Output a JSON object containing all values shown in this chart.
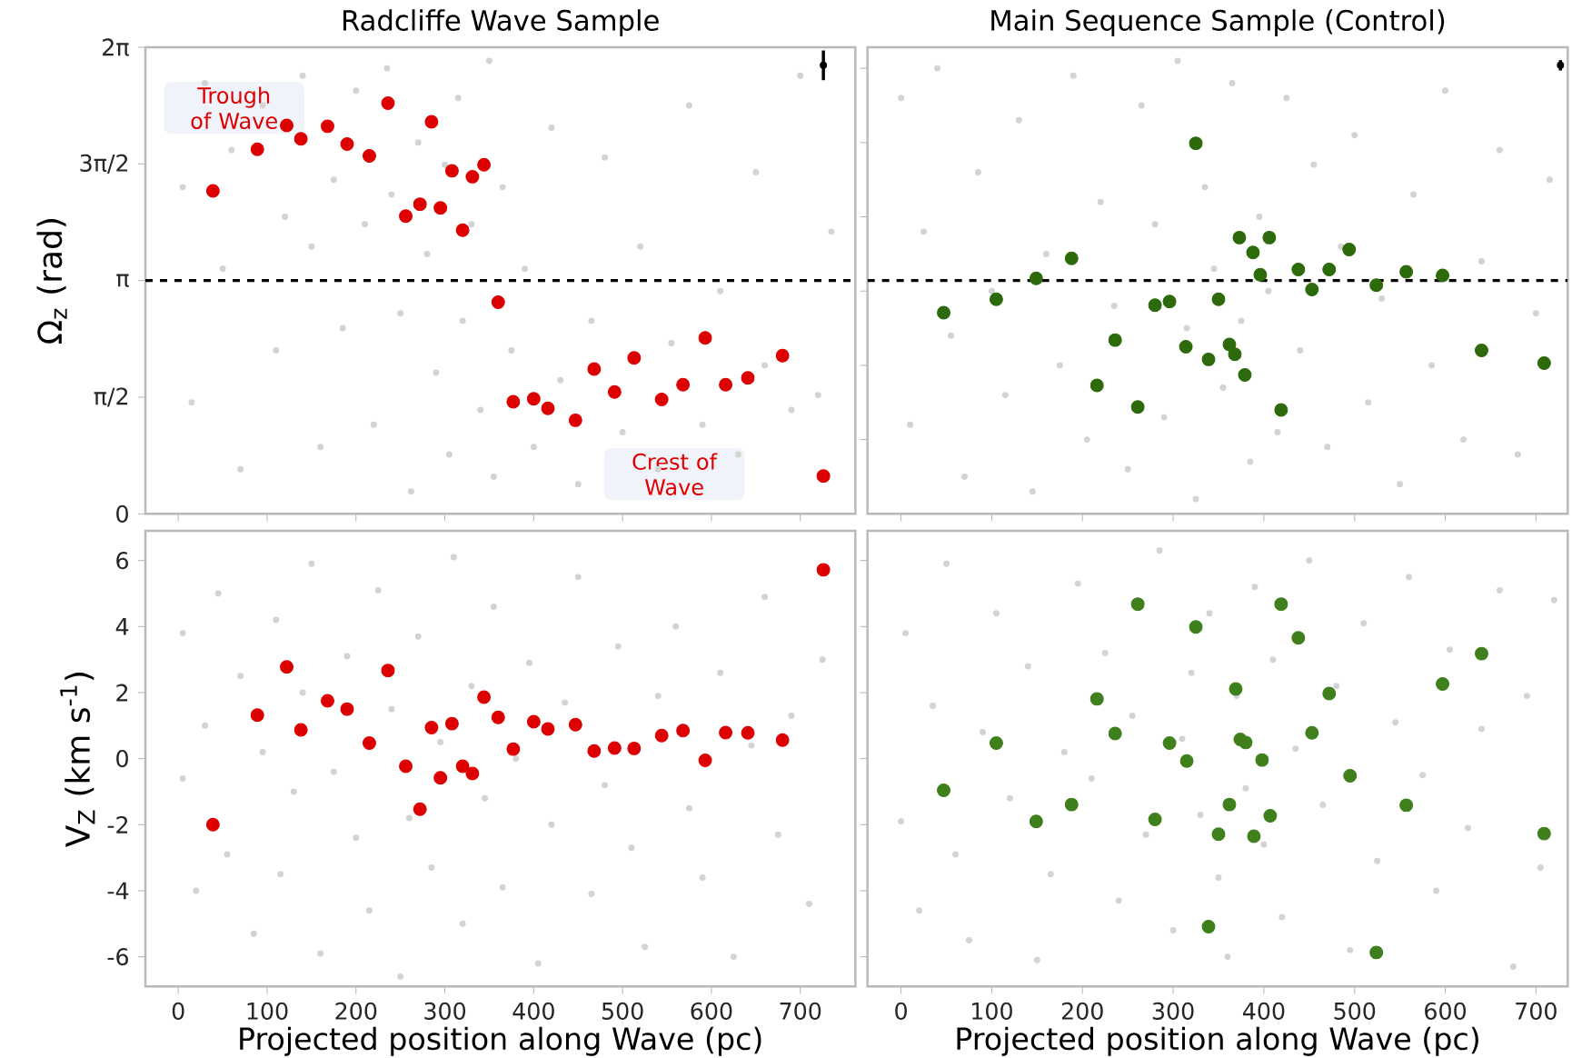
{
  "chart_data": [
    {
      "type": "scatter",
      "title": "Radcliffe Wave Sample",
      "ylabel": "Ω$_{z}$ (rad)",
      "marker": "circle",
      "tick_labels": "y",
      "xlim": [
        -37,
        762
      ],
      "ylim": [
        0,
        6.2832
      ],
      "xticks": [
        0,
        100,
        200,
        300,
        400,
        500,
        600,
        700
      ],
      "yticks": [
        0,
        {
          "value": 1.5708,
          "label": "π/2"
        },
        {
          "value": 3.1416,
          "label": "π"
        },
        {
          "value": 4.7124,
          "label": "3π/2"
        },
        {
          "value": 6.2832,
          "label": "2π"
        }
      ],
      "ref_lines": [
        {
          "axis": "y",
          "value": 3.1416,
          "color": "#000000",
          "line_style": "dashed"
        }
      ],
      "annotations": [
        "Trough of Wave",
        "Crest of Wave"
      ],
      "series": [
        {
          "color": "#d3d3d3",
          "x": [
            5,
            15,
            30,
            50,
            60,
            70,
            95,
            110,
            120,
            140,
            150,
            160,
            175,
            185,
            200,
            210,
            220,
            235,
            240,
            250,
            262,
            270,
            280,
            290,
            300,
            305,
            315,
            320,
            330,
            340,
            350,
            355,
            365,
            375,
            390,
            400,
            420,
            430,
            450,
            465,
            480,
            500,
            520,
            540,
            555,
            575,
            590,
            610,
            630,
            650,
            660,
            690,
            700,
            720,
            735
          ],
          "values": [
            4.4,
            1.5,
            5.8,
            3.3,
            4.9,
            0.6,
            5.5,
            2.2,
            4.0,
            5.9,
            3.6,
            0.9,
            4.5,
            2.5,
            5.7,
            3.9,
            1.2,
            6.0,
            4.3,
            2.7,
            0.3,
            5.0,
            3.5,
            1.9,
            4.7,
            0.8,
            5.6,
            2.6,
            3.9,
            1.4,
            6.1,
            0.5,
            4.4,
            2.2,
            3.3,
            0.9,
            5.2,
            1.8,
            0.4,
            2.6,
            4.8,
            1.1,
            3.6,
            0.6,
            2.3,
            5.5,
            1.2,
            3.0,
            0.8,
            4.6,
            2.0,
            1.4,
            5.9,
            1.6,
            3.8
          ]
        },
        {
          "color": "#dd0000",
          "x": [
            39,
            89,
            122,
            138,
            168,
            190,
            215,
            236,
            256,
            272,
            285,
            295,
            308,
            320,
            331,
            344,
            360,
            377,
            400,
            416,
            447,
            468,
            491,
            513,
            544,
            568,
            593,
            616,
            641,
            680,
            726
          ],
          "values": [
            4.35,
            4.91,
            5.23,
            5.05,
            5.22,
            4.98,
            4.82,
            5.53,
            4.01,
            4.17,
            5.28,
            4.12,
            4.62,
            3.82,
            4.54,
            4.7,
            2.85,
            1.51,
            1.55,
            1.42,
            1.26,
            1.95,
            1.64,
            2.1,
            1.54,
            1.74,
            2.37,
            1.74,
            1.83,
            2.13,
            0.51
          ]
        },
        {
          "color": "#000000",
          "x": [
            726
          ],
          "values": [
            6.04
          ],
          "errors": [
            0.2
          ]
        }
      ]
    },
    {
      "type": "scatter",
      "title": "Main Sequence Sample (Control)",
      "marker": "circle",
      "tick_labels": false,
      "xlim": [
        -37,
        735
      ],
      "ylim": [
        0,
        6.2832
      ],
      "xticks": [
        0,
        100,
        200,
        300,
        400,
        500,
        600,
        700
      ],
      "yticks": [
        {
          "value": 1,
          "label": null
        },
        {
          "value": 2,
          "label": null
        },
        {
          "value": 3,
          "label": null
        },
        {
          "value": 4,
          "label": null
        },
        {
          "value": 5,
          "label": null
        },
        {
          "value": 6,
          "label": null
        }
      ],
      "ref_lines": [
        {
          "axis": "y",
          "value": 3.1416,
          "color": "#000000",
          "line_style": "dashed"
        }
      ],
      "series": [
        {
          "color": "#d3d3d3",
          "x": [
            0,
            10,
            25,
            40,
            55,
            70,
            85,
            100,
            115,
            130,
            145,
            160,
            175,
            190,
            205,
            220,
            235,
            250,
            265,
            280,
            290,
            305,
            315,
            325,
            335,
            345,
            355,
            365,
            375,
            385,
            395,
            405,
            415,
            425,
            440,
            455,
            470,
            485,
            500,
            515,
            530,
            550,
            565,
            585,
            600,
            620,
            640,
            660,
            680,
            700,
            715
          ],
          "values": [
            5.6,
            1.2,
            3.8,
            6.0,
            2.4,
            0.5,
            4.6,
            3.0,
            1.6,
            5.3,
            0.3,
            3.5,
            2.0,
            5.9,
            1.0,
            4.2,
            2.8,
            0.6,
            5.5,
            3.9,
            1.3,
            6.1,
            2.5,
            0.2,
            4.4,
            3.3,
            1.7,
            5.8,
            2.6,
            0.7,
            4.0,
            3.0,
            1.1,
            5.6,
            2.2,
            4.7,
            0.9,
            3.6,
            5.1,
            1.5,
            2.9,
            0.4,
            4.3,
            2.0,
            5.7,
            1.0,
            3.4,
            4.9,
            0.8,
            2.7,
            4.5
          ]
        },
        {
          "color": "#2d6a0c",
          "x": [
            47,
            105,
            149,
            188,
            216,
            236,
            261,
            280,
            296,
            314,
            325,
            339,
            350,
            362,
            368,
            373,
            379,
            388,
            396,
            406,
            419,
            438,
            453,
            472,
            494,
            524,
            557,
            597,
            640,
            709
          ],
          "values": [
            2.71,
            2.89,
            3.17,
            3.44,
            1.73,
            2.34,
            1.44,
            2.81,
            2.86,
            2.25,
            4.99,
            2.08,
            2.89,
            2.28,
            2.15,
            3.72,
            1.87,
            3.52,
            3.22,
            3.72,
            1.4,
            3.29,
            3.02,
            3.29,
            3.56,
            3.08,
            3.26,
            3.21,
            2.2,
            2.03
          ]
        },
        {
          "color": "#000000",
          "x": [
            727
          ],
          "values": [
            6.04
          ],
          "errors": [
            0.07
          ]
        }
      ]
    },
    {
      "type": "scatter",
      "xlabel": "Projected position along Wave (pc)",
      "ylabel": "V$_{Z}$ (km s$^{-1}$)",
      "marker": "circle",
      "xlim": [
        -37,
        762
      ],
      "ylim": [
        -6.9,
        6.9
      ],
      "xticks": [
        0,
        100,
        200,
        300,
        400,
        500,
        600,
        700
      ],
      "yticks": [
        -6,
        -4,
        -2,
        0,
        2,
        4,
        6
      ],
      "series": [
        {
          "color": "#d3d3d3",
          "x": [
            5,
            5,
            20,
            30,
            45,
            55,
            70,
            85,
            95,
            110,
            115,
            130,
            140,
            150,
            160,
            175,
            190,
            200,
            215,
            225,
            240,
            250,
            260,
            270,
            285,
            295,
            310,
            320,
            330,
            345,
            355,
            365,
            380,
            395,
            405,
            420,
            435,
            450,
            465,
            480,
            495,
            510,
            525,
            540,
            560,
            575,
            590,
            610,
            625,
            645,
            660,
            675,
            690,
            710,
            725
          ],
          "values": [
            -0.6,
            3.8,
            -4.0,
            1.0,
            5.0,
            -2.9,
            2.5,
            -5.3,
            0.2,
            4.2,
            -3.5,
            -1.0,
            2.0,
            5.9,
            -5.9,
            -0.4,
            3.1,
            -2.4,
            -4.6,
            5.1,
            1.5,
            -6.6,
            -1.8,
            3.7,
            -3.3,
            0.5,
            6.1,
            -5.0,
            2.2,
            -1.2,
            4.6,
            -3.9,
            0.0,
            2.9,
            -6.2,
            -2.0,
            1.7,
            5.5,
            -4.1,
            -0.8,
            3.4,
            -2.7,
            -5.7,
            1.9,
            4.0,
            -1.5,
            -3.6,
            2.6,
            -6.0,
            0.4,
            4.9,
            -2.3,
            1.3,
            -4.4,
            3.0
          ]
        },
        {
          "color": "#dd0000",
          "x": [
            39,
            89,
            122,
            138,
            168,
            190,
            215,
            236,
            256,
            272,
            285,
            295,
            308,
            320,
            331,
            344,
            360,
            377,
            400,
            416,
            447,
            468,
            491,
            513,
            544,
            568,
            593,
            616,
            641,
            680,
            726
          ],
          "values": [
            -2.0,
            1.32,
            2.78,
            0.87,
            1.75,
            1.5,
            0.47,
            2.67,
            -0.23,
            -1.53,
            0.94,
            -0.58,
            1.06,
            -0.23,
            -0.45,
            1.86,
            1.25,
            0.29,
            1.12,
            0.9,
            1.03,
            0.23,
            0.32,
            0.31,
            0.7,
            0.85,
            -0.05,
            0.79,
            0.78,
            0.56,
            5.72
          ]
        }
      ]
    },
    {
      "type": "scatter",
      "xlabel": "Projected position along Wave (pc)",
      "marker": "circle",
      "tick_labels": "x",
      "xlim": [
        -37,
        735
      ],
      "ylim": [
        -6.9,
        6.9
      ],
      "xticks": [
        0,
        100,
        200,
        300,
        400,
        500,
        600,
        700
      ],
      "yticks": [
        -6,
        -4,
        -2,
        0,
        2,
        4,
        6
      ],
      "series": [
        {
          "color": "#d3d3d3",
          "x": [
            0,
            5,
            20,
            35,
            50,
            60,
            75,
            90,
            105,
            120,
            140,
            150,
            165,
            180,
            195,
            210,
            225,
            240,
            255,
            270,
            285,
            300,
            310,
            320,
            330,
            340,
            350,
            360,
            370,
            380,
            390,
            400,
            410,
            420,
            435,
            450,
            465,
            480,
            495,
            510,
            525,
            545,
            560,
            575,
            590,
            605,
            625,
            640,
            660,
            675,
            690,
            705,
            720
          ],
          "values": [
            -1.9,
            3.8,
            -4.6,
            1.6,
            5.9,
            -2.9,
            -5.5,
            0.8,
            4.4,
            -1.2,
            2.8,
            -6.1,
            -3.5,
            0.2,
            5.3,
            -0.6,
            3.2,
            -4.3,
            1.3,
            -2.3,
            6.3,
            -5.2,
            0.6,
            2.6,
            -1.7,
            4.4,
            -3.6,
            -6.0,
            1.9,
            -0.9,
            5.2,
            -2.6,
            3.0,
            -4.8,
            0.3,
            6.0,
            -1.4,
            2.2,
            -5.8,
            4.1,
            -3.1,
            1.1,
            5.5,
            -0.5,
            -4.0,
            3.3,
            -2.1,
            0.9,
            5.1,
            -6.3,
            1.9,
            -3.3,
            4.8
          ]
        },
        {
          "color": "#3f7f1c",
          "x": [
            47,
            105,
            149,
            188,
            216,
            236,
            261,
            280,
            296,
            315,
            325,
            339,
            350,
            362,
            369,
            374,
            380,
            389,
            398,
            407,
            419,
            438,
            453,
            472,
            495,
            524,
            557,
            597,
            640,
            709
          ],
          "values": [
            -0.96,
            0.47,
            -1.9,
            -1.39,
            1.81,
            0.76,
            4.68,
            -1.84,
            0.47,
            -0.07,
            3.99,
            -5.09,
            -2.29,
            -1.39,
            2.11,
            0.58,
            0.49,
            -2.35,
            -0.04,
            -1.73,
            4.68,
            3.66,
            0.78,
            1.97,
            -0.52,
            -5.87,
            -1.41,
            2.26,
            3.18,
            -2.27
          ]
        }
      ]
    }
  ]
}
